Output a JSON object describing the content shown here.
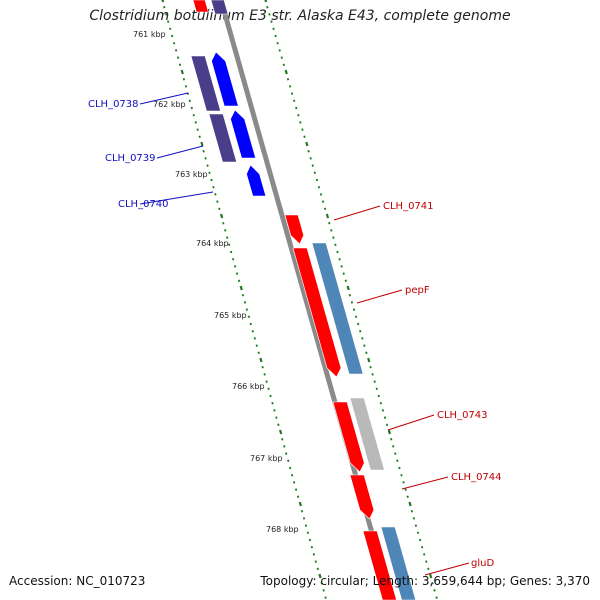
{
  "title": "Clostridium botulinum E3 str. Alaska E43, complete genome",
  "footer": {
    "accession": "Accession: NC_010723",
    "summary": "Topology: circular; Length: 3,659,644 bp; Genes: 3,370"
  },
  "colors": {
    "backbone": "#8a8a8a",
    "tick": "#1e7a1e",
    "label_blue": "#1010c0",
    "label_red": "#c00000",
    "gene_red": "#ff0000",
    "gene_blue": "#0000ff",
    "gene_navy": "#4a3d8a",
    "gene_steel": "#4f86b8",
    "gene_gray": "#b9b9b9"
  },
  "scale_labels": [
    "761 kbp",
    "762 kbp",
    "763 kbp",
    "764 kbp",
    "765 kbp",
    "766 kbp",
    "767 kbp",
    "768 kbp"
  ],
  "gene_labels": [
    {
      "text": "CLH_0738",
      "color": "blue"
    },
    {
      "text": "CLH_0739",
      "color": "blue"
    },
    {
      "text": "CLH_0740",
      "color": "blue"
    },
    {
      "text": "CLH_0741",
      "color": "red"
    },
    {
      "text": "pepF",
      "color": "red"
    },
    {
      "text": "CLH_0743",
      "color": "red"
    },
    {
      "text": "CLH_0744",
      "color": "red"
    },
    {
      "text": "gluD",
      "color": "red"
    }
  ]
}
